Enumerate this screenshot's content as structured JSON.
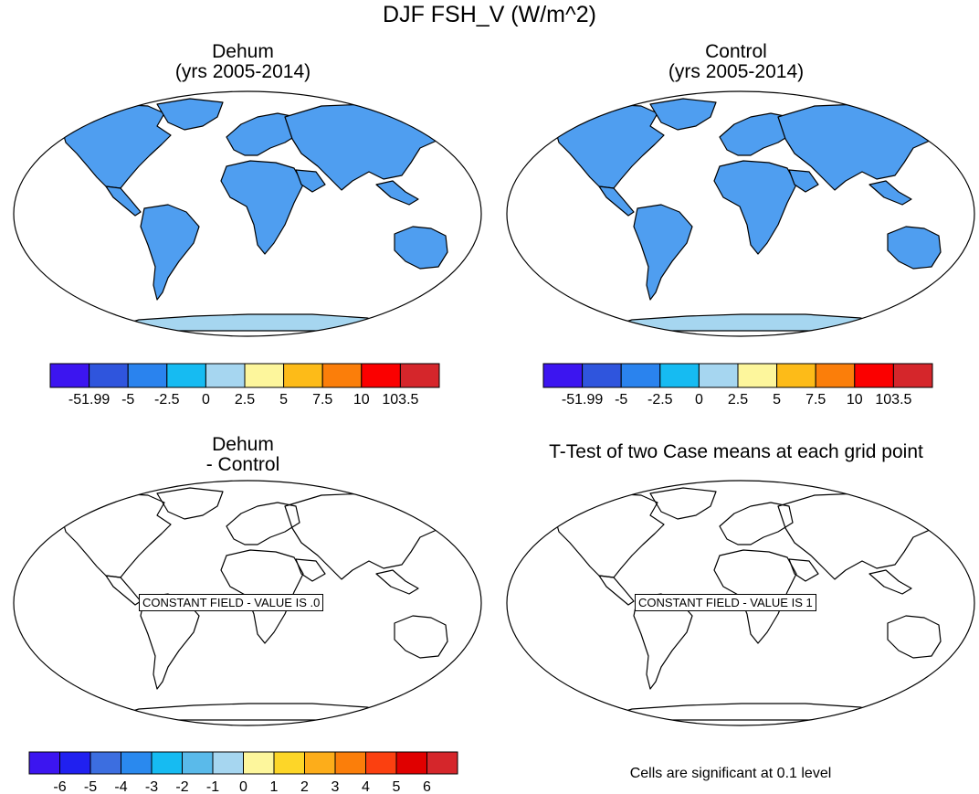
{
  "title": "DJF FSH_V (W/m^2)",
  "panels": {
    "top_left": {
      "title_line1": "Dehum",
      "title_line2": "(yrs 2005-2014)"
    },
    "top_right": {
      "title_line1": "Control",
      "title_line2": "(yrs 2005-2014)"
    },
    "bottom_left": {
      "title_line1": "Dehum",
      "title_line2": "- Control",
      "constant_label": "CONSTANT FIELD - VALUE IS .0"
    },
    "bottom_right": {
      "title": "T-Test of two Case means at each grid point",
      "constant_label": "CONSTANT FIELD - VALUE IS 1",
      "note": "Cells are significant at 0.1 level"
    }
  },
  "colorbar_main": {
    "colors": [
      "#3c15f0",
      "#2f55dd",
      "#2a83ee",
      "#16bbf2",
      "#a6d6f0",
      "#fdf69c",
      "#fdbb18",
      "#fb7e0a",
      "#fb0000",
      "#d5262b"
    ],
    "labels": [
      "-51.99",
      "-5",
      "-2.5",
      "0",
      "2.5",
      "5",
      "7.5",
      "10",
      "103.5"
    ]
  },
  "colorbar_diff": {
    "colors": [
      "#3c15f0",
      "#2020f0",
      "#3c6ee0",
      "#2a89ee",
      "#16bbf2",
      "#5abaea",
      "#a6d6f0",
      "#fdf69c",
      "#fdd628",
      "#fdad1a",
      "#fb7e0a",
      "#fb4010",
      "#e00000",
      "#d5262b"
    ],
    "labels": [
      "-6",
      "-5",
      "-4",
      "-3",
      "-2",
      "-1",
      "0",
      "1",
      "2",
      "3",
      "4",
      "5",
      "6"
    ]
  },
  "colors": {
    "land_fill": "#4f9ef0",
    "ocean": "#ffffff",
    "antarctica": "#a6d6f0",
    "outline": "#000000"
  }
}
